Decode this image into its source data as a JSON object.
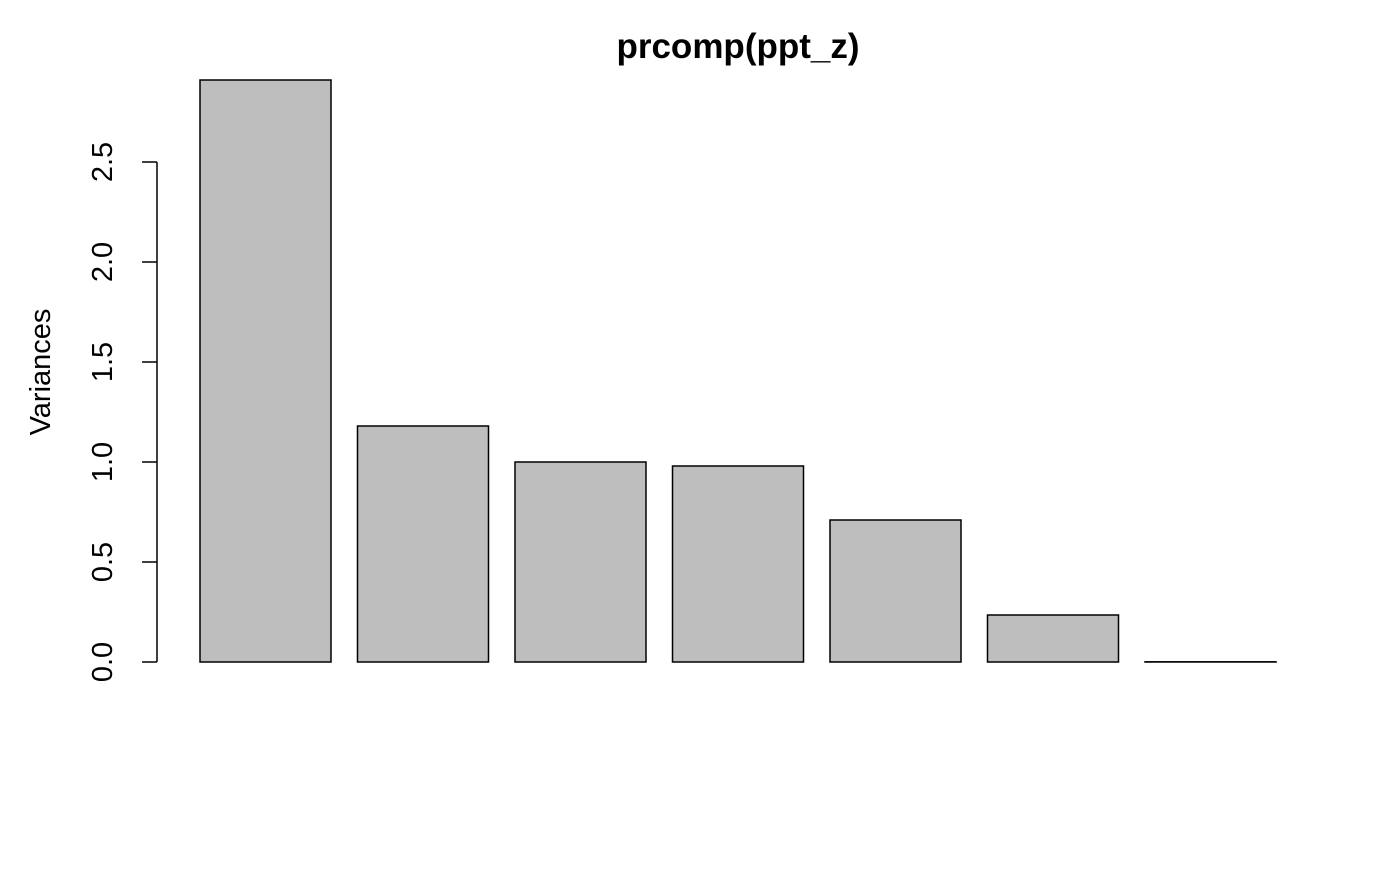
{
  "chart_data": {
    "type": "bar",
    "title": "prcomp(ppt_z)",
    "xlabel": "",
    "ylabel": "Variances",
    "categories": [
      "",
      "",
      "",
      "",
      "",
      "",
      ""
    ],
    "values": [
      2.91,
      1.18,
      1.0,
      0.98,
      0.71,
      0.235,
      0.001
    ],
    "ylim": [
      0,
      2.91
    ],
    "y_ticks": [
      "0.0",
      "0.5",
      "1.0",
      "1.5",
      "2.0",
      "2.5"
    ],
    "grid": false,
    "bar_color": "#bebebe",
    "bar_border_color": "#000000"
  }
}
